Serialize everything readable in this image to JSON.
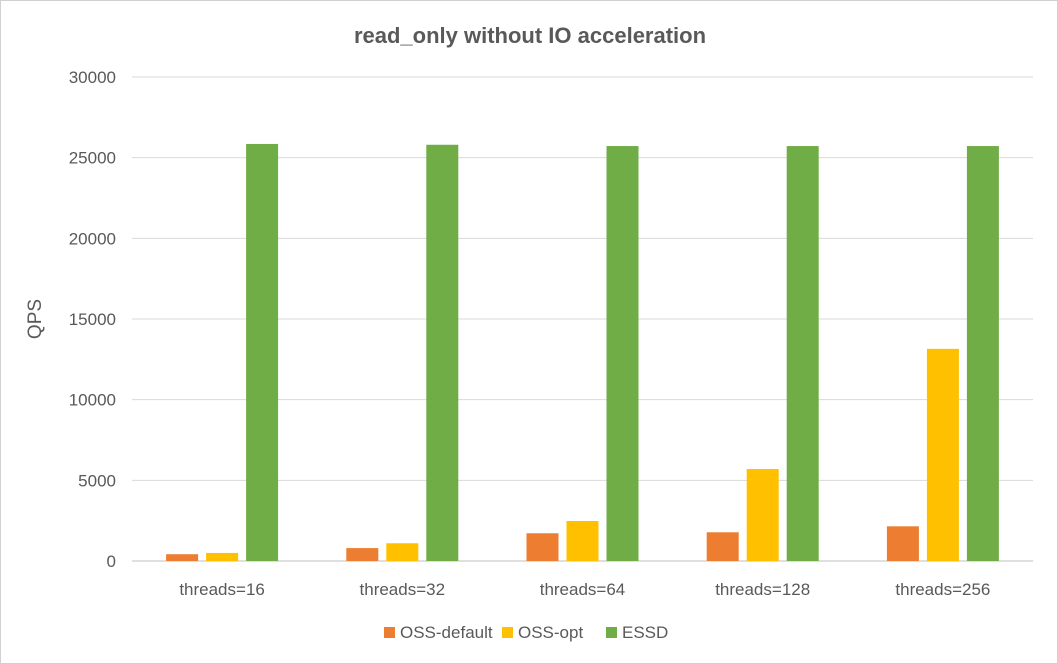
{
  "chart_data": {
    "type": "bar",
    "title": "read_only without IO acceleration",
    "xlabel": "",
    "ylabel": "QPS",
    "ylim": [
      0,
      30000
    ],
    "yticks": [
      0,
      5000,
      10000,
      15000,
      20000,
      25000,
      30000
    ],
    "grid": true,
    "legend_position": "bottom",
    "categories": [
      "threads=16",
      "threads=32",
      "threads=64",
      "threads=128",
      "threads=256"
    ],
    "series": [
      {
        "name": "OSS-default",
        "color": "#ed7d31",
        "values": [
          420,
          800,
          1720,
          1780,
          2150
        ]
      },
      {
        "name": "OSS-opt",
        "color": "#ffc000",
        "values": [
          500,
          1100,
          2480,
          5700,
          13150
        ]
      },
      {
        "name": "ESSD",
        "color": "#70ad47",
        "values": [
          25850,
          25800,
          25720,
          25720,
          25720
        ]
      }
    ]
  }
}
